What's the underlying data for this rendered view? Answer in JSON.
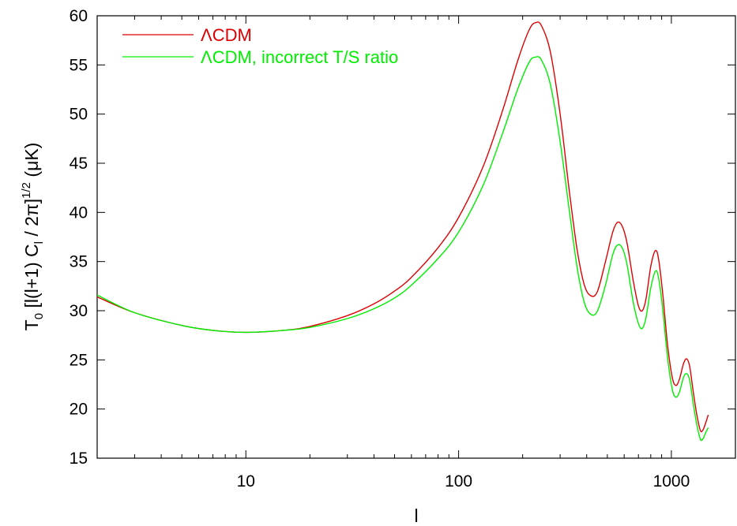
{
  "chart_data": {
    "type": "line",
    "xlabel": "l",
    "ylabel": {
      "text": "T",
      "sub0": "0",
      "mid1": " [l(l+1) C",
      "sub1": "l",
      "mid2": " / 2π]",
      "sup": "1/2",
      "tail": " (μK)"
    },
    "xscale": "log",
    "xlim": [
      2,
      2000
    ],
    "ylim": [
      15,
      60
    ],
    "xticks": [
      10,
      100,
      1000
    ],
    "xtick_labels": [
      "10",
      "100",
      "1000"
    ],
    "yticks": [
      15,
      20,
      25,
      30,
      35,
      40,
      45,
      50,
      55,
      60
    ],
    "ytick_labels": [
      "15",
      "20",
      "25",
      "30",
      "35",
      "40",
      "45",
      "50",
      "55",
      "60"
    ],
    "grid": false,
    "legend_position": "top-left",
    "series": [
      {
        "name": "ΛCDM",
        "color": "#dd0000",
        "points": [
          [
            2,
            31.4
          ],
          [
            3,
            29.8
          ],
          [
            5,
            28.5
          ],
          [
            7,
            28.0
          ],
          [
            10,
            27.8
          ],
          [
            15,
            28.0
          ],
          [
            20,
            28.4
          ],
          [
            30,
            29.5
          ],
          [
            40,
            30.7
          ],
          [
            50,
            32.0
          ],
          [
            60,
            33.4
          ],
          [
            80,
            36.4
          ],
          [
            100,
            39.5
          ],
          [
            130,
            44.6
          ],
          [
            160,
            50.2
          ],
          [
            190,
            55.5
          ],
          [
            215,
            58.6
          ],
          [
            230,
            59.3
          ],
          [
            245,
            59.0
          ],
          [
            270,
            56.3
          ],
          [
            300,
            50.0
          ],
          [
            330,
            42.5
          ],
          [
            360,
            36.3
          ],
          [
            390,
            32.6
          ],
          [
            420,
            31.5
          ],
          [
            450,
            32.0
          ],
          [
            490,
            35.0
          ],
          [
            530,
            38.0
          ],
          [
            560,
            39.0
          ],
          [
            590,
            38.5
          ],
          [
            620,
            36.8
          ],
          [
            660,
            33.2
          ],
          [
            700,
            30.5
          ],
          [
            730,
            30.0
          ],
          [
            760,
            31.2
          ],
          [
            800,
            34.5
          ],
          [
            840,
            36.1
          ],
          [
            870,
            35.3
          ],
          [
            910,
            31.8
          ],
          [
            960,
            26.5
          ],
          [
            1010,
            23.2
          ],
          [
            1050,
            22.4
          ],
          [
            1090,
            23.0
          ],
          [
            1140,
            24.6
          ],
          [
            1180,
            25.1
          ],
          [
            1220,
            24.3
          ],
          [
            1270,
            21.6
          ],
          [
            1320,
            19.3
          ],
          [
            1370,
            17.8
          ],
          [
            1410,
            17.9
          ],
          [
            1450,
            18.6
          ],
          [
            1490,
            19.4
          ]
        ]
      },
      {
        "name": "ΛCDM, incorrect T/S ratio",
        "color": "#00ee00",
        "points": [
          [
            2,
            31.6
          ],
          [
            3,
            29.8
          ],
          [
            5,
            28.5
          ],
          [
            7,
            28.0
          ],
          [
            10,
            27.8
          ],
          [
            15,
            28.0
          ],
          [
            20,
            28.3
          ],
          [
            30,
            29.2
          ],
          [
            40,
            30.2
          ],
          [
            50,
            31.3
          ],
          [
            60,
            32.6
          ],
          [
            80,
            35.3
          ],
          [
            100,
            38.0
          ],
          [
            130,
            42.7
          ],
          [
            160,
            47.9
          ],
          [
            190,
            52.6
          ],
          [
            215,
            55.3
          ],
          [
            230,
            55.8
          ],
          [
            245,
            55.5
          ],
          [
            270,
            53.0
          ],
          [
            300,
            47.2
          ],
          [
            330,
            40.5
          ],
          [
            360,
            34.5
          ],
          [
            390,
            30.8
          ],
          [
            420,
            29.6
          ],
          [
            450,
            30.0
          ],
          [
            490,
            32.6
          ],
          [
            530,
            35.7
          ],
          [
            560,
            36.7
          ],
          [
            590,
            36.3
          ],
          [
            620,
            34.6
          ],
          [
            660,
            31.0
          ],
          [
            700,
            28.7
          ],
          [
            730,
            28.2
          ],
          [
            760,
            29.3
          ],
          [
            800,
            32.3
          ],
          [
            840,
            34.0
          ],
          [
            870,
            33.4
          ],
          [
            910,
            30.2
          ],
          [
            960,
            25.2
          ],
          [
            1010,
            22.0
          ],
          [
            1050,
            21.2
          ],
          [
            1090,
            21.7
          ],
          [
            1140,
            23.2
          ],
          [
            1180,
            23.6
          ],
          [
            1220,
            22.9
          ],
          [
            1270,
            20.4
          ],
          [
            1320,
            18.3
          ],
          [
            1370,
            16.9
          ],
          [
            1410,
            17.0
          ],
          [
            1450,
            17.6
          ],
          [
            1490,
            18.1
          ]
        ]
      }
    ]
  }
}
